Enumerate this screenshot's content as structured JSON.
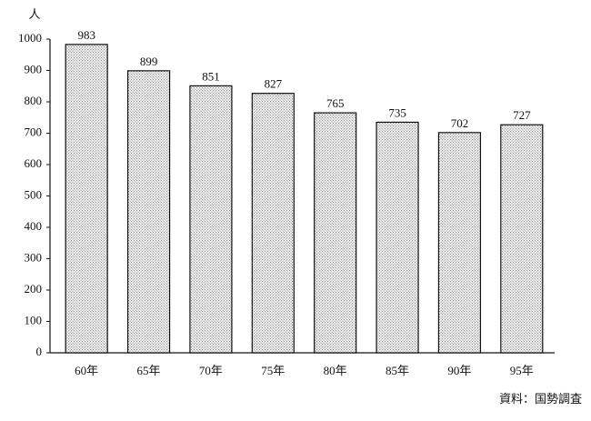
{
  "chart_data": {
    "type": "bar",
    "y_label": "人",
    "source": "資料：国勢調査",
    "categories": [
      "60年",
      "65年",
      "70年",
      "75年",
      "80年",
      "85年",
      "90年",
      "95年"
    ],
    "values": [
      983,
      899,
      851,
      827,
      765,
      735,
      702,
      727
    ],
    "color": "#8a8a8a",
    "ylim": [
      0,
      1000
    ],
    "yticks": [
      0,
      100,
      200,
      300,
      400,
      500,
      600,
      700,
      800,
      900,
      1000
    ],
    "grid": false
  }
}
